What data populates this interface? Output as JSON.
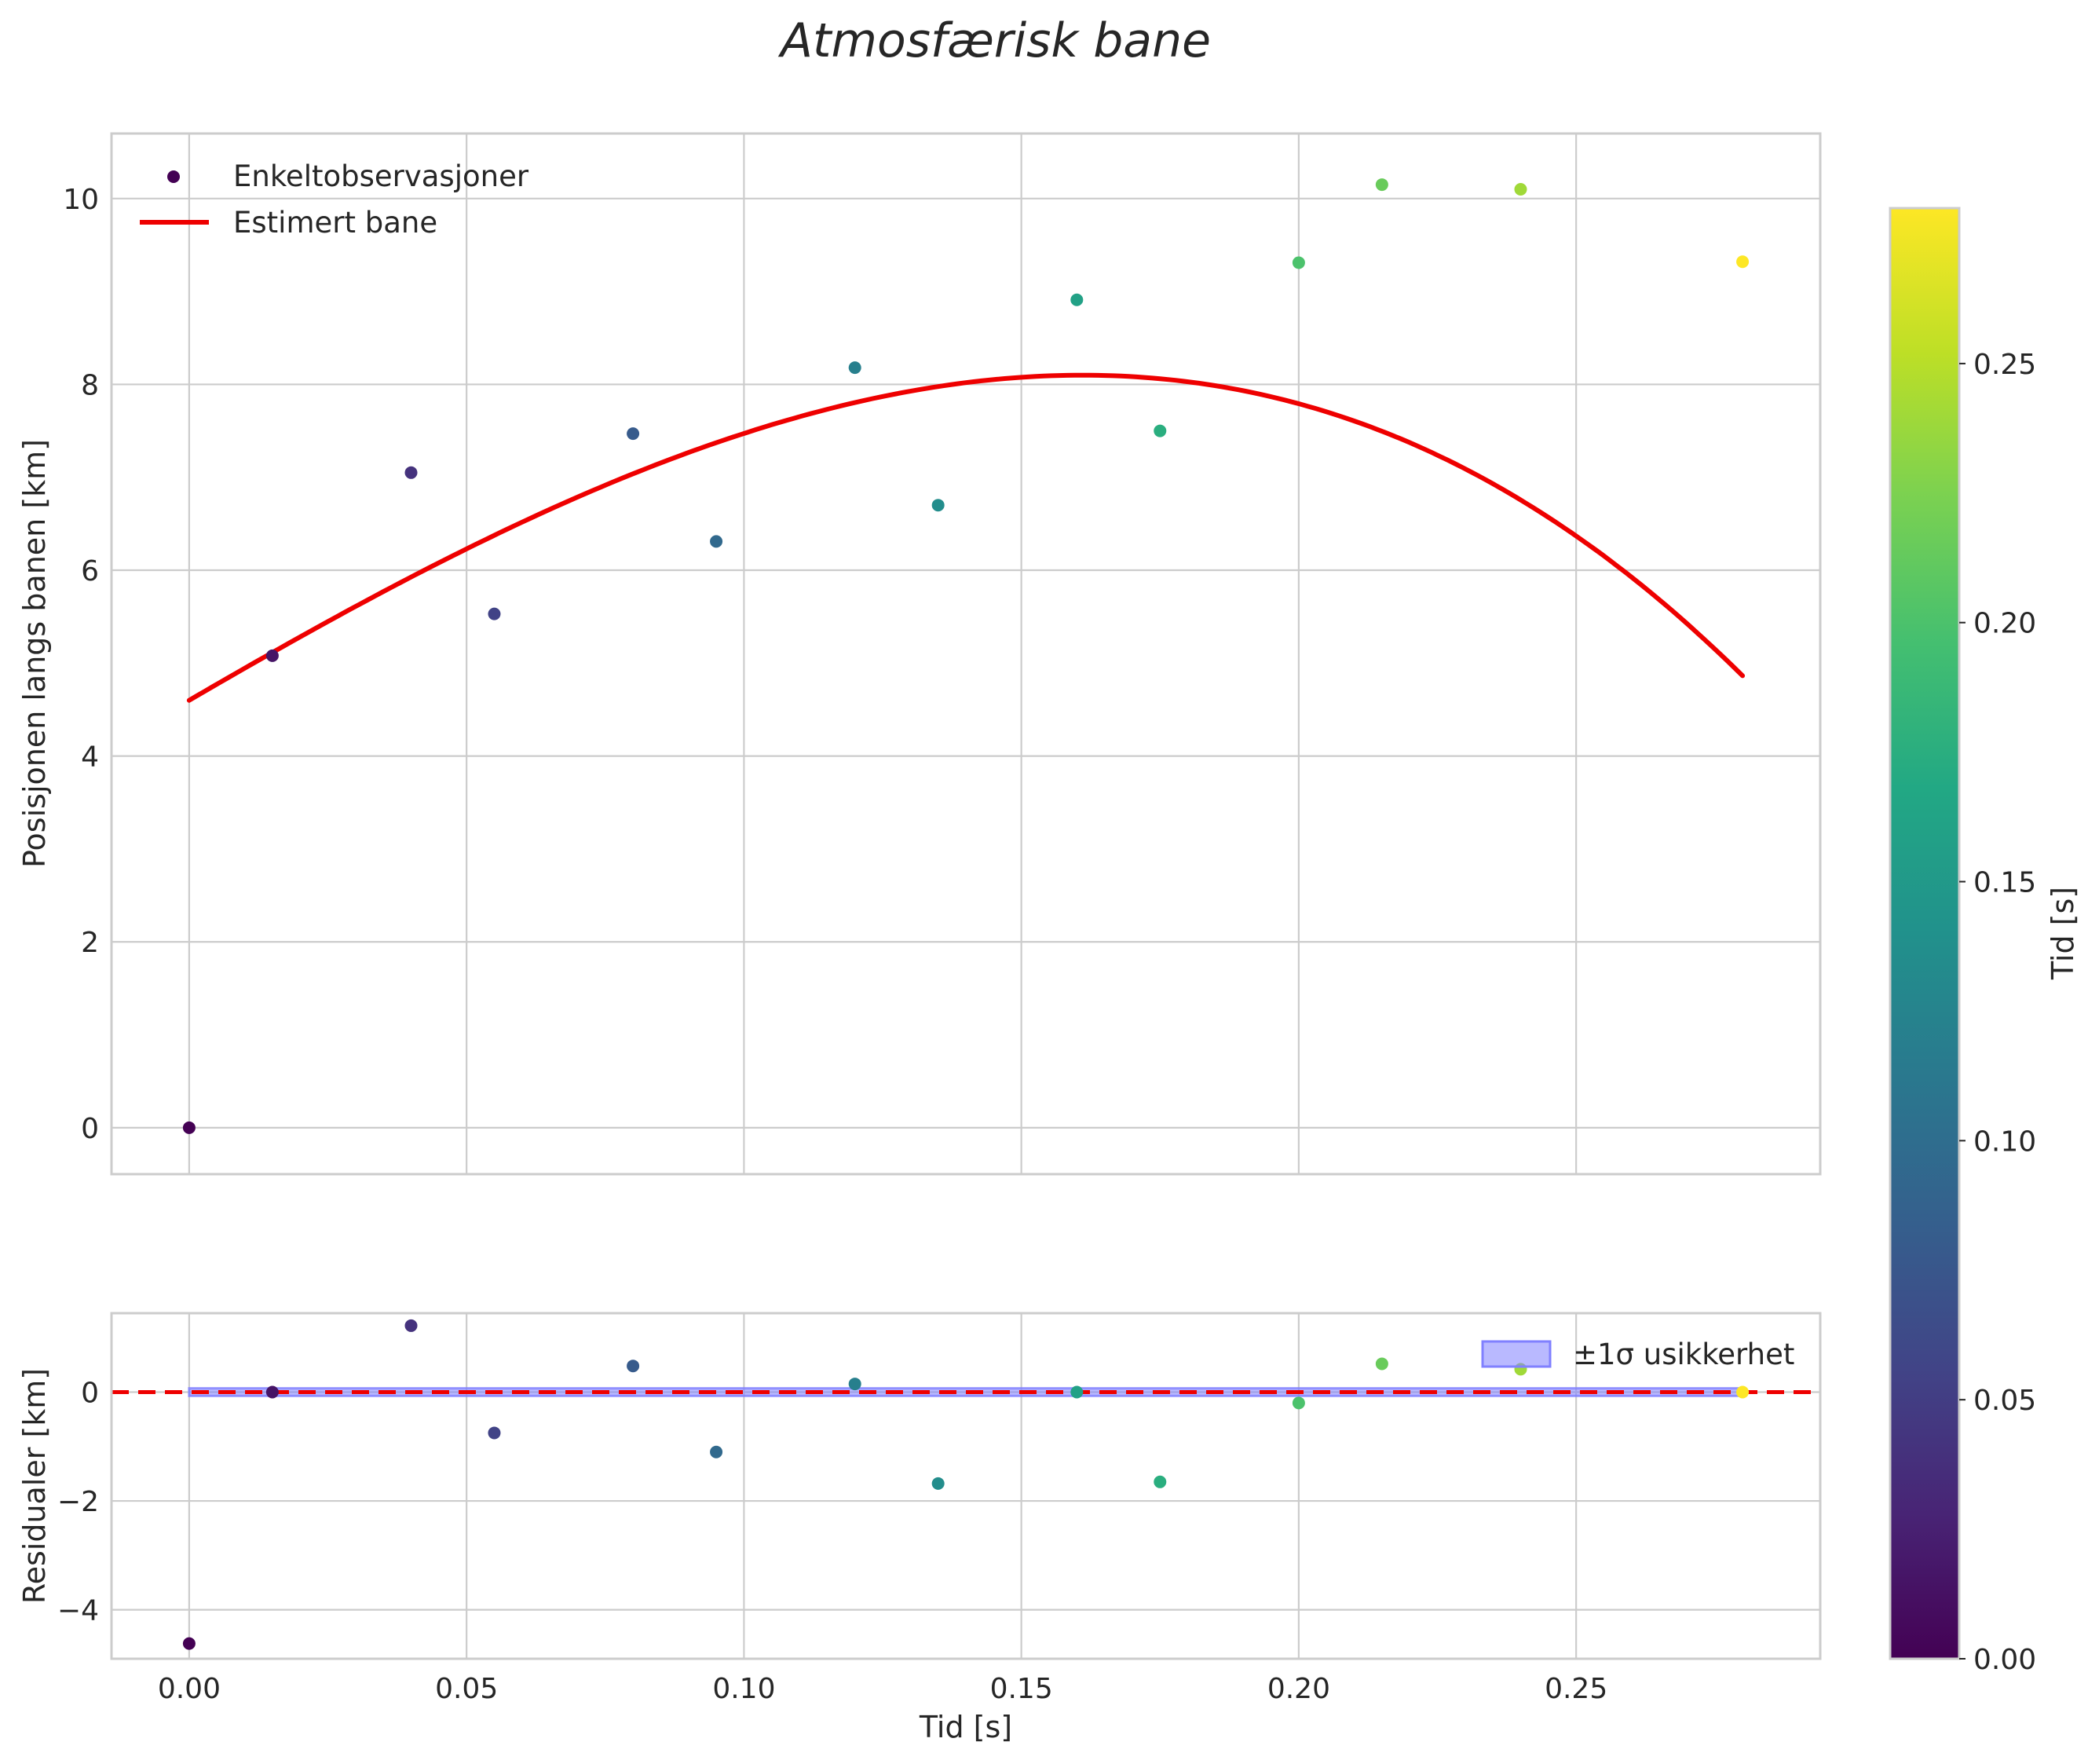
{
  "chart_data": {
    "type": "scatter",
    "title": "Atmosfærisk bane",
    "main": {
      "ylabel": "Posisjonen langs banen [km]",
      "ylim": [
        -0.5,
        10.7
      ],
      "yticks": [
        0,
        2,
        4,
        6,
        8,
        10
      ],
      "ytick_labels": [
        "0",
        "2",
        "4",
        "6",
        "8",
        "10"
      ],
      "legend": [
        "Enkeltobservasjoner",
        "Estimert bane"
      ],
      "observations": {
        "name": "Enkeltobservasjoner",
        "x": [
          0.0,
          0.015,
          0.04,
          0.055,
          0.08,
          0.095,
          0.12,
          0.135,
          0.16,
          0.175,
          0.2,
          0.215,
          0.24,
          0.28
        ],
        "y": [
          0.0,
          5.08,
          7.05,
          5.53,
          7.47,
          6.31,
          8.18,
          6.7,
          8.91,
          7.5,
          9.31,
          10.15,
          10.1,
          9.32
        ]
      },
      "fit": {
        "name": "Estimert bane",
        "color": "#ee0000",
        "coefficients": [
          4.6,
          34.8,
          -27.4,
          -334.0
        ]
      }
    },
    "residuals": {
      "ylabel": "Residualer [km]",
      "ylim": [
        -4.9,
        1.45
      ],
      "yticks": [
        -4,
        -2,
        0
      ],
      "ytick_labels": [
        "−4",
        "−2",
        "0"
      ],
      "y": [
        -4.62,
        0.0,
        1.22,
        -0.75,
        0.48,
        -1.1,
        0.15,
        -1.68,
        0.0,
        -1.65,
        -0.2,
        0.52,
        0.42,
        0.0
      ],
      "band_label": "±1σ usikkerhet",
      "band_halfwidth": 0.07,
      "band_color": "#8080ff",
      "zero_line_color": "#ee0000"
    },
    "xlabel": "Tid [s]",
    "xlim": [
      -0.014,
      0.294
    ],
    "xticks": [
      0.0,
      0.05,
      0.1,
      0.15,
      0.2,
      0.25
    ],
    "xtick_labels": [
      "0.00",
      "0.05",
      "0.10",
      "0.15",
      "0.20",
      "0.25"
    ],
    "colorbar": {
      "label": "Tid [s]",
      "colormap": "viridis",
      "range": [
        0.0,
        0.28
      ],
      "ticks": [
        0.0,
        0.05,
        0.1,
        0.15,
        0.2,
        0.25
      ],
      "tick_labels": [
        "0.00",
        "0.05",
        "0.10",
        "0.15",
        "0.20",
        "0.25"
      ]
    }
  }
}
